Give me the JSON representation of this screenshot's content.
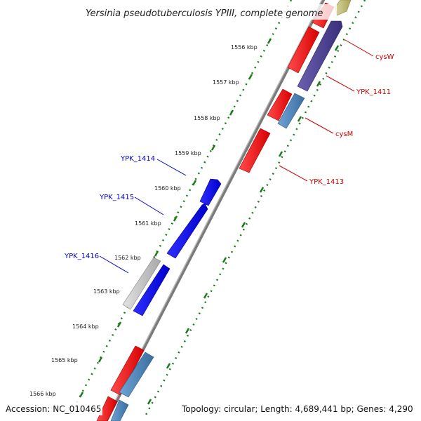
{
  "title": "Yersinia pseudotuberculosis YPIII, complete genome",
  "accession": "Accession: NC_010465",
  "summary": "Topology: circular; Length: 4,689,441 bp; Genes: 4,290",
  "ticks": [
    "1556 kbp",
    "1557 kbp",
    "1558 kbp",
    "1559 kbp",
    "1560 kbp",
    "1561 kbp",
    "1562 kbp",
    "1563 kbp",
    "1564 kbp",
    "1565 kbp",
    "1566 kbp"
  ],
  "gene_labels": {
    "cysW": "cysW",
    "YPK_1411": "YPK_1411",
    "cysM": "cysM",
    "YPK_1413": "YPK_1413",
    "YPK_1414": "YPK_1414",
    "YPK_1415": "YPK_1415",
    "YPK_1416": "YPK_1416"
  },
  "colors": {
    "backbone": "#8c8c8c",
    "cds": "#ff0000",
    "gene": "#4682b4",
    "highlight": "#0000ff",
    "pseudo": "#c8c8c8",
    "other": "#483d8b",
    "rna": "#bdb76b",
    "tick": "#1a7a1a",
    "label_red": "#cc0000",
    "label_blue": "#0000cc"
  }
}
